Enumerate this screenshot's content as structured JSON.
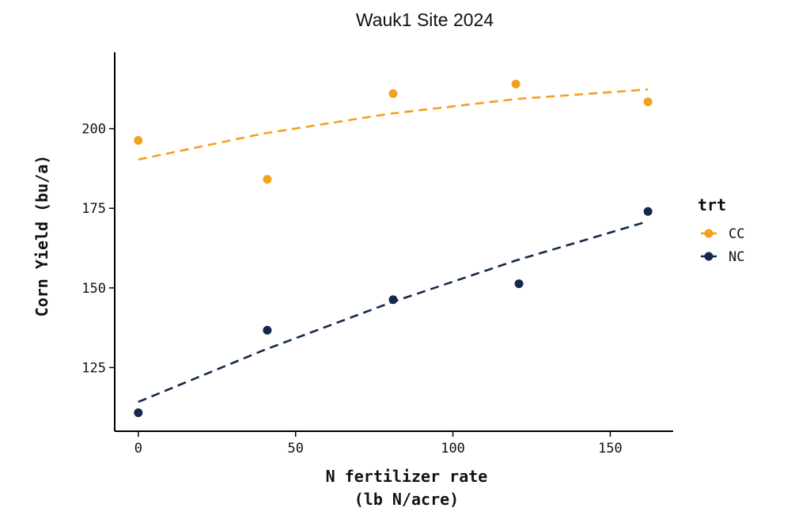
{
  "chart_data": {
    "type": "scatter",
    "title": "Wauk1  Site 2024",
    "xlabel_line1": "N fertilizer rate",
    "xlabel_line2": "(lb N/acre)",
    "ylabel": "Corn Yield (bu/a)",
    "xlim": [
      -7.5,
      170
    ],
    "ylim": [
      105,
      224
    ],
    "xticks": [
      0,
      50,
      100,
      150
    ],
    "yticks": [
      125,
      150,
      175,
      200
    ],
    "grid": false,
    "legend": {
      "title": "trt",
      "placement": "right"
    },
    "series": [
      {
        "name": "CC",
        "color": "#F3A01F",
        "points": [
          {
            "x": 0,
            "y": 196.3
          },
          {
            "x": 41,
            "y": 184.1
          },
          {
            "x": 81,
            "y": 211
          },
          {
            "x": 120,
            "y": 214
          },
          {
            "x": 162,
            "y": 208.4
          }
        ],
        "fit": [
          {
            "x": 0,
            "y": 190.3
          },
          {
            "x": 40,
            "y": 198.5
          },
          {
            "x": 80,
            "y": 204.7
          },
          {
            "x": 120,
            "y": 209.3
          },
          {
            "x": 162,
            "y": 212.3
          }
        ]
      },
      {
        "name": "NC",
        "color": "#13294B",
        "points": [
          {
            "x": 0,
            "y": 110.8
          },
          {
            "x": 41,
            "y": 136.7
          },
          {
            "x": 81,
            "y": 146.3
          },
          {
            "x": 121,
            "y": 151.3
          },
          {
            "x": 162,
            "y": 174
          }
        ],
        "fit": [
          {
            "x": 0,
            "y": 114.2
          },
          {
            "x": 40,
            "y": 130.5
          },
          {
            "x": 80,
            "y": 145.3
          },
          {
            "x": 120,
            "y": 158.6
          },
          {
            "x": 162,
            "y": 170.9
          }
        ]
      }
    ]
  }
}
